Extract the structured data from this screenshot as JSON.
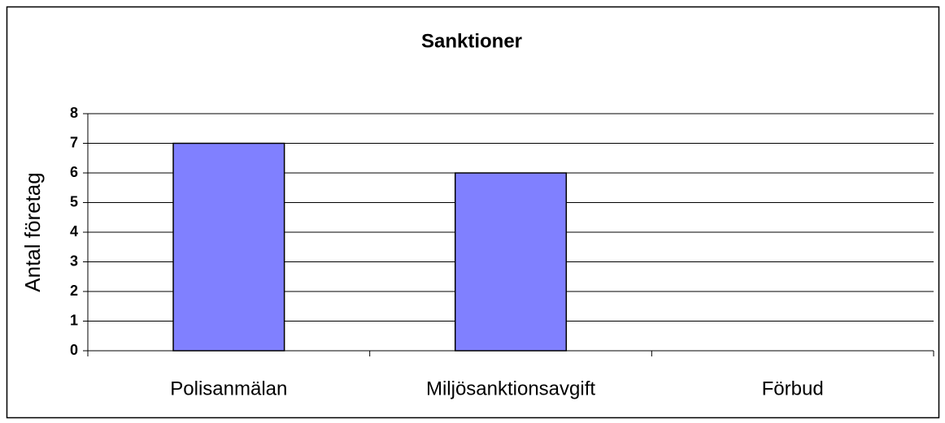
{
  "chart_data": {
    "type": "bar",
    "title": "Sanktioner",
    "ylabel": "Antal företag",
    "categories": [
      "Polisanmälan",
      "Miljösanktionsavgift",
      "Förbud"
    ],
    "values": [
      7,
      6,
      0
    ],
    "color": "#8080ff",
    "ylim": [
      0,
      8
    ],
    "yticks": [
      0,
      1,
      2,
      3,
      4,
      5,
      6,
      7,
      8
    ],
    "grid": true
  }
}
